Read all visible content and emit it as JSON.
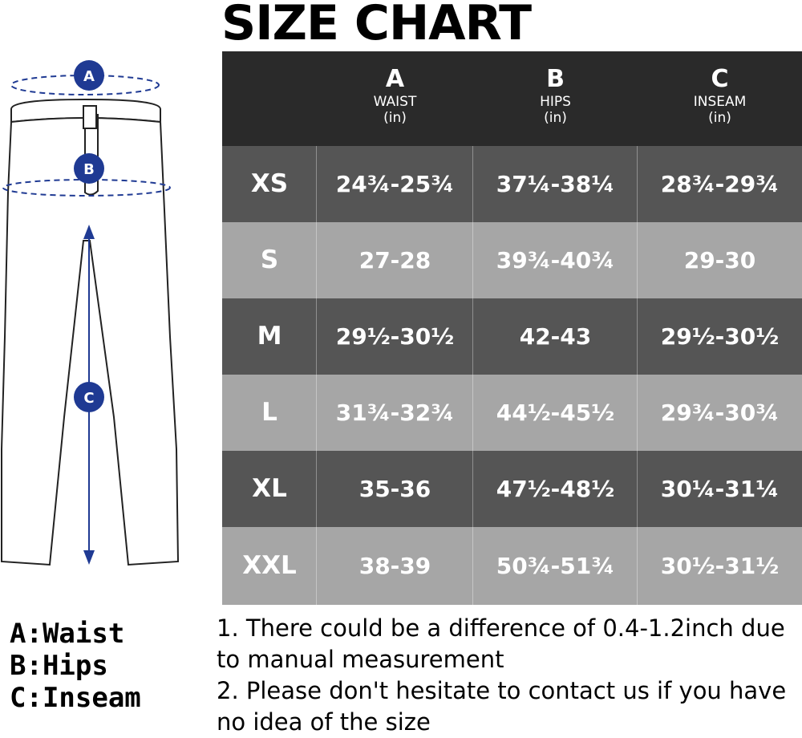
{
  "title": "SIZE CHART",
  "headers": [
    {
      "letter": "A",
      "name": "WAIST",
      "unit": "(in)"
    },
    {
      "letter": "B",
      "name": "HIPS",
      "unit": "(in)"
    },
    {
      "letter": "C",
      "name": "INSEAM",
      "unit": "(in)"
    }
  ],
  "rows": [
    {
      "size": "XS",
      "waist": "24¾-25¾",
      "hips": "37¼-38¼",
      "inseam": "28¾-29¾",
      "color": "#555555"
    },
    {
      "size": "S",
      "waist": "27-28",
      "hips": "39¾-40¾",
      "inseam": "29-30",
      "color": "#a6a6a6"
    },
    {
      "size": "M",
      "waist": "29½-30½",
      "hips": "42-43",
      "inseam": "29½-30½",
      "color": "#555555"
    },
    {
      "size": "L",
      "waist": "31¾-32¾",
      "hips": "44½-45½",
      "inseam": "29¾-30¾",
      "color": "#a6a6a6"
    },
    {
      "size": "XL",
      "waist": "35-36",
      "hips": "47½-48½",
      "inseam": "30¼-31¼",
      "color": "#555555"
    },
    {
      "size": "XXL",
      "waist": "38-39",
      "hips": "50¾-51¾",
      "inseam": "30½-31½",
      "color": "#a6a6a6"
    }
  ],
  "diagram": {
    "marker_a": "A",
    "marker_b": "B",
    "marker_c": "C",
    "marker_color": "#1f3a93"
  },
  "legend": [
    "A:Waist",
    "B:Hips",
    "C:Inseam"
  ],
  "notes": [
    "1. There could be a difference of 0.4-1.2inch due to manual measurement",
    "2. Please don't hesitate to contact us if you have no idea of the size"
  ]
}
